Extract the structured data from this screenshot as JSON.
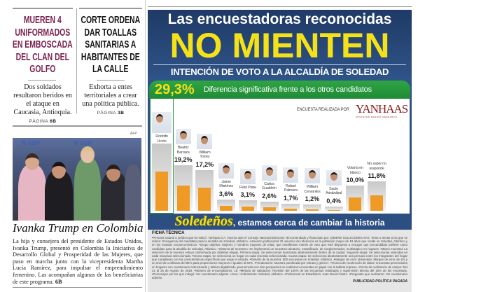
{
  "news": {
    "story1": {
      "headline": "MUEREN 4 UNIFORMADOS EN EMBOSCADA DEL CLAN DEL GOLFO",
      "summary": "Dos soldados resultaron heridos en el ataque en Caucasia, Antioquia.",
      "page_label": "PÁGINA",
      "page": "6B"
    },
    "story2": {
      "headline": "CORTE ORDENA DAR TOALLAS SANITARIAS A HABITANTES DE LA CALLE",
      "summary": "Exhorta a entes territoriales a crear una política pública.",
      "page_label": "PÁGINA",
      "page": "3B"
    },
    "photo": {
      "credit": "AFP",
      "logo_text": "W GDP",
      "title": "Ivanka Trump en Colombia",
      "body": "La hija y consejera del presidente de Estados Unidos, Ivanka Trump, presentó en Colombia la Iniciativa de Desarrollo Global y Prosperidad de las Mujeres, que puso en marcha junto con la vicepresidenta Martha Lucía Ramírez, para impulsar el emprendimiento femenino. Las acompañan algunas de las beneficiarias de este programa.",
      "page": "6B"
    }
  },
  "ad": {
    "title1": "Las encuestadoras reconocidas",
    "title2": "NO MIENTEN",
    "subtitle": "INTENCIÓN DE VOTO A LA ALCALDÍA DE SOLEDAD",
    "lead_pct": "29,3%",
    "lead_text": "Diferencia significativa frente a los otros candidatos",
    "pollster_label": "ENCUESTA REALIZADA POR",
    "pollster_logo": "YANHAAS",
    "pollster_tag": "ADVANCED MARKET RESEARCH",
    "slogan_brand": "Soledeños",
    "slogan_text": ", estamos cerca de cambiar la historia",
    "ficha_title": "FICHA TÉCNICA",
    "ficha_text": "•Persona natural o jurídica que la realizó: Yanhaas S.A. inscrito ante el Consejo Nacional Electoral. •Encomendado y financiado por: DIMENS SOLUCIONES SAS. Tema o temas a los que se refiere: Escogencia del candidato para la alcaldía de Soledad, Atlántico. •Universo poblacional: El universo de referencia es la población mayor de 18 años que reside en Soledad, Atlántico y en los estratos socioeconómicos. •Grupo objetivo: Mujeres y hombres mayores de edad, que manifiesten interés de voto que esté dispuesto a escoger que precandidato prefiere como candidato para la alcaldía de Soledad, Atlántico. •Sistema de muestreo: Se implementó un muestreo aleatorio, estratificado, de conglomerados, multietápico en hogares. •Marco muestral: La selección de la muestra estuvo conformada por distintas etapas. Primera etapa: Se seleccionan manzanas aleatoriamente dentro de la ciudad. Segunda etapa: Se seleccionan viviendas en cada manzana seleccionada. Tercera etapa: Se selecciona un hogar en cada vivienda seleccionada. Cuarta etapa: Se selecciona aleatoriamente una persona entre los integrantes del hogar que cumplieran con las características específicas que exige el estudio. •Tamaño de la muestra: 800 encuestas en Soledad, Atlántico. •Margen de error observado: Margen de error de 4% y un nivel de confianza del 95% para proporciones mayores o iguales al 50%. •Ponderación: Muestra ponderada por estrato y género. •Técnica de recolección de datos: encuestas presenciales en hogares con cuestionario estructurado y tablero digitalizado, para tenerla con sitio perspectiva se realizaron encuestas en papel con la tableta impreso. •Fecha de realización de campo: Del 21 al 26 de Agosto de 2019. •Número de encuestadores: 15. •Método de validación: Revisión del 100% de las encuestas realizadas y supervisión directa del 15% de las encuestas. •Personajes por los que indagó: Ver cuestionario adjunto. •Área / Cubrimiento: Soledad, Atlántico. •Profesional en Estadística: Juan David Castro. •Preguntas que realizaron: Ver cuestionario adjunto.",
    "paid_label": "PUBLICIDAD POLÍTICA PAGADA"
  },
  "chart_data": {
    "type": "bar",
    "title": "INTENCIÓN DE VOTO A LA ALCALDÍA DE SOLEDAD",
    "categories": [
      "Rodolfo Ucrós",
      "Beatriz Barraza",
      "William Torres",
      "Jaime Martínez",
      "Fidel Plata",
      "Carlos Gualdrón",
      "Rafael Palmera",
      "William Cervantes",
      "Saulo Aristizábal",
      "Votaría en blanco",
      "No sabe/ no responde"
    ],
    "labels": [
      "",
      "19,2%",
      "17,2%",
      "3,6%",
      "3,1%",
      "2,6%",
      "1,7%",
      "1,2%",
      "0,4%",
      "10,0%",
      "11,8%"
    ],
    "values": [
      29.3,
      19.2,
      17.2,
      3.6,
      3.1,
      2.6,
      1.7,
      1.2,
      0.4,
      10.0,
      11.8
    ],
    "photo": [
      true,
      true,
      true,
      true,
      true,
      true,
      true,
      true,
      true,
      false,
      false
    ],
    "bar_color": "#ee9a25"
  }
}
